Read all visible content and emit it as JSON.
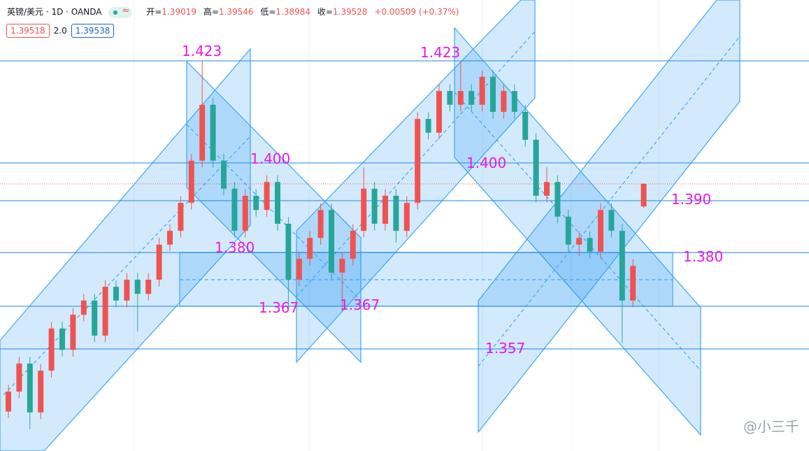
{
  "header": {
    "symbol": "英镑/美元 · 1D · OANDA",
    "open_label": "开=",
    "high_label": "高=",
    "low_label": "低=",
    "close_label": "收=",
    "change": "+0.00509",
    "change_pct": "(+0.37%)",
    "sell": "1.39518",
    "spread": "2.0",
    "buy": "1.39538"
  },
  "chart_data": {
    "type": "candlestick",
    "ylim": [
      1.3351,
      1.4367
    ],
    "up_color": "#ef5350",
    "down_color": "#26a69a",
    "open": [
      1.344,
      1.3485,
      1.3548,
      1.3438,
      1.3532,
      1.3627,
      1.3579,
      1.3658,
      1.369,
      1.3611,
      1.3721,
      1.369,
      1.3737,
      1.3705,
      1.3737,
      1.3816,
      1.3847,
      1.391,
      1.4005,
      1.4131,
      1.4005,
      1.3942,
      1.3847,
      1.3926,
      1.3894,
      1.3957,
      1.3863,
      1.3737,
      1.3784,
      1.3831,
      1.3894,
      1.3753,
      1.3784,
      1.3847,
      1.3942,
      1.3863,
      1.3926,
      1.3847,
      1.391,
      1.4099,
      1.4068,
      1.4162,
      1.4131,
      1.4162,
      1.4131,
      1.4194,
      1.4115,
      1.4162,
      1.4115,
      1.4052,
      1.3926,
      1.3957,
      1.3879,
      1.3816,
      1.3831,
      1.38,
      1.3894,
      1.3847,
      1.369,
      1.39019
    ],
    "high": [
      1.35,
      1.3563,
      1.3563,
      1.3547,
      1.3642,
      1.3642,
      1.3673,
      1.3705,
      1.3705,
      1.3736,
      1.3736,
      1.3752,
      1.3752,
      1.3752,
      1.3831,
      1.3862,
      1.3925,
      1.402,
      1.423,
      1.4146,
      1.402,
      1.3957,
      1.3941,
      1.3941,
      1.3972,
      1.3972,
      1.3878,
      1.3799,
      1.3846,
      1.3909,
      1.3909,
      1.3799,
      1.3862,
      1.399,
      1.3957,
      1.3941,
      1.3941,
      1.3925,
      1.4114,
      1.4114,
      1.4177,
      1.4177,
      1.4228,
      1.4177,
      1.4209,
      1.4209,
      1.4177,
      1.4177,
      1.413,
      1.4067,
      1.399,
      1.3972,
      1.3894,
      1.3846,
      1.3846,
      1.3909,
      1.3909,
      1.3862,
      1.3783,
      1.39546
    ],
    "low": [
      1.3425,
      1.347,
      1.34,
      1.3423,
      1.3517,
      1.3564,
      1.3564,
      1.3643,
      1.3596,
      1.3596,
      1.3675,
      1.3675,
      1.362,
      1.369,
      1.3722,
      1.3801,
      1.3832,
      1.3895,
      1.399,
      1.399,
      1.3927,
      1.3832,
      1.3832,
      1.3879,
      1.3879,
      1.3848,
      1.367,
      1.3722,
      1.3769,
      1.3816,
      1.3738,
      1.3665,
      1.3769,
      1.3832,
      1.3848,
      1.3848,
      1.382,
      1.3832,
      1.3895,
      1.4053,
      1.4053,
      1.4116,
      1.4116,
      1.4116,
      1.4116,
      1.41,
      1.41,
      1.41,
      1.4037,
      1.3911,
      1.3911,
      1.3864,
      1.3801,
      1.379,
      1.3785,
      1.3785,
      1.3832,
      1.3594,
      1.3675,
      1.38984
    ],
    "close": [
      1.3485,
      1.3548,
      1.3438,
      1.3532,
      1.3627,
      1.3579,
      1.3658,
      1.369,
      1.3611,
      1.3721,
      1.369,
      1.3737,
      1.3705,
      1.3737,
      1.3816,
      1.3847,
      1.391,
      1.4005,
      1.4131,
      1.4005,
      1.3942,
      1.3847,
      1.3926,
      1.3894,
      1.3957,
      1.3863,
      1.3737,
      1.3784,
      1.3831,
      1.3894,
      1.3753,
      1.3784,
      1.3847,
      1.3942,
      1.3863,
      1.3926,
      1.3847,
      1.391,
      1.4099,
      1.4068,
      1.4162,
      1.4131,
      1.4162,
      1.4131,
      1.4194,
      1.4115,
      1.4162,
      1.4115,
      1.4052,
      1.3926,
      1.3957,
      1.3879,
      1.3816,
      1.3831,
      1.38,
      1.3894,
      1.3847,
      1.369,
      1.3768,
      1.39528
    ],
    "levels": [
      1.423,
      1.4,
      1.3915,
      1.3798,
      1.3677,
      1.3581
    ],
    "level_color": "#1e88e5",
    "last_price_color": "#ef5350",
    "annotations": [
      "1.423",
      "1.400",
      "1.380",
      "1.367",
      "1.367",
      "1.423",
      "1.400",
      "1.390",
      "1.380",
      "1.357"
    ],
    "annotation_color": "#e619e6"
  },
  "watermark": "@小三千"
}
